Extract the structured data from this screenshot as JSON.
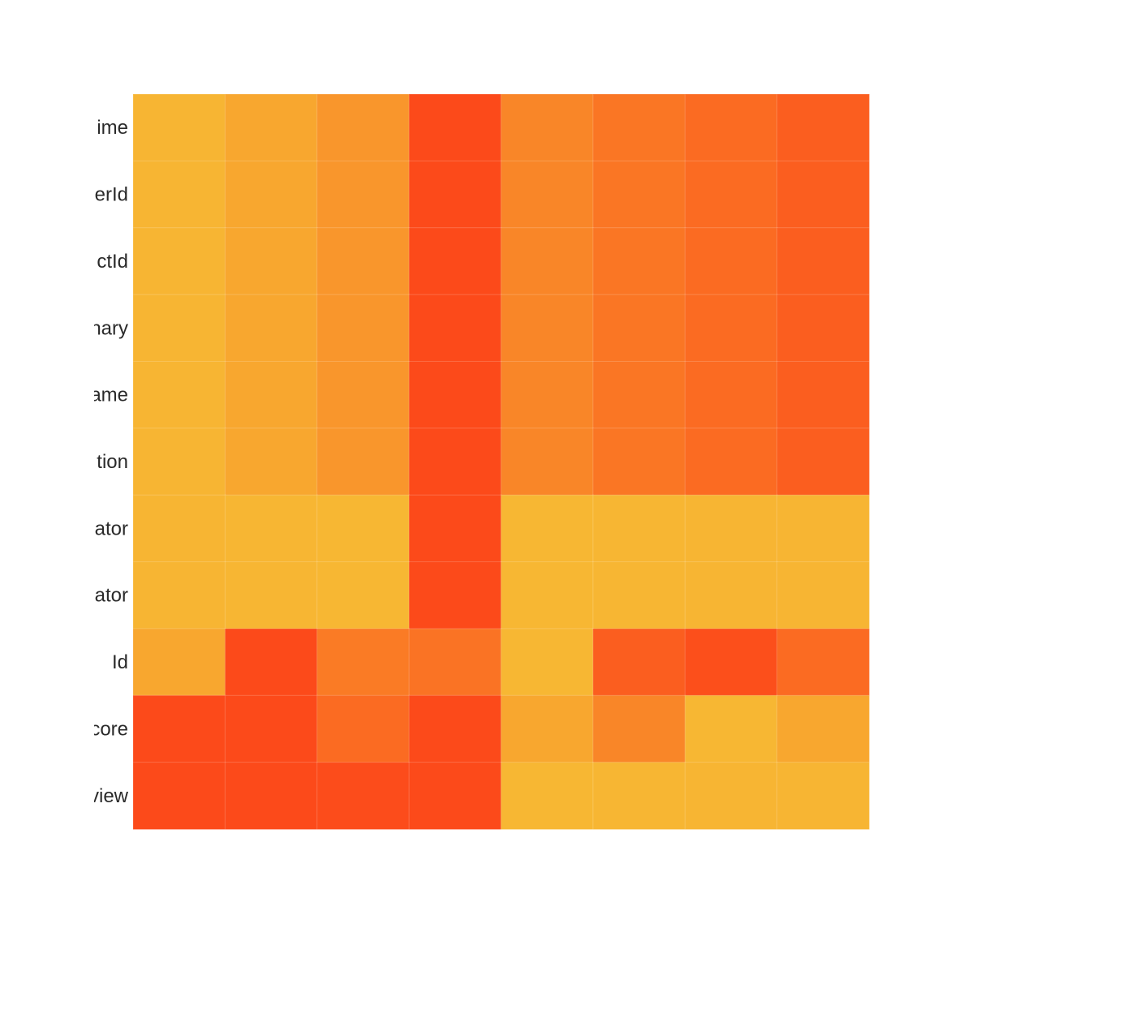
{
  "chart_data": {
    "type": "heatmap",
    "title": "",
    "xlabel": "",
    "ylabel": "",
    "row_labels": [
      "ime",
      "erId",
      "ctId",
      "nary",
      "ame",
      "tion",
      "ator",
      "ator",
      "Id",
      "core",
      "view"
    ],
    "column_count": 8,
    "color_scale": {
      "low": "#f7b733",
      "high": "#fc4a1a"
    },
    "values": [
      [
        0.02,
        0.15,
        0.3,
        1.0,
        0.45,
        0.6,
        0.7,
        0.82
      ],
      [
        0.02,
        0.15,
        0.3,
        1.0,
        0.45,
        0.6,
        0.7,
        0.82
      ],
      [
        0.02,
        0.15,
        0.3,
        1.0,
        0.45,
        0.6,
        0.7,
        0.82
      ],
      [
        0.02,
        0.15,
        0.3,
        1.0,
        0.45,
        0.6,
        0.7,
        0.82
      ],
      [
        0.02,
        0.15,
        0.3,
        1.0,
        0.45,
        0.6,
        0.7,
        0.82
      ],
      [
        0.02,
        0.15,
        0.3,
        1.0,
        0.45,
        0.6,
        0.7,
        0.82
      ],
      [
        0.02,
        0.01,
        0.0,
        1.0,
        0.0,
        0.01,
        0.02,
        0.02
      ],
      [
        0.02,
        0.01,
        0.0,
        1.0,
        0.0,
        0.01,
        0.02,
        0.02
      ],
      [
        0.15,
        1.0,
        0.55,
        0.62,
        0.0,
        0.82,
        0.95,
        0.7
      ],
      [
        1.0,
        1.0,
        0.7,
        1.0,
        0.15,
        0.45,
        0.0,
        0.15
      ],
      [
        1.0,
        1.0,
        0.98,
        1.0,
        0.0,
        0.01,
        0.02,
        0.02
      ]
    ]
  }
}
